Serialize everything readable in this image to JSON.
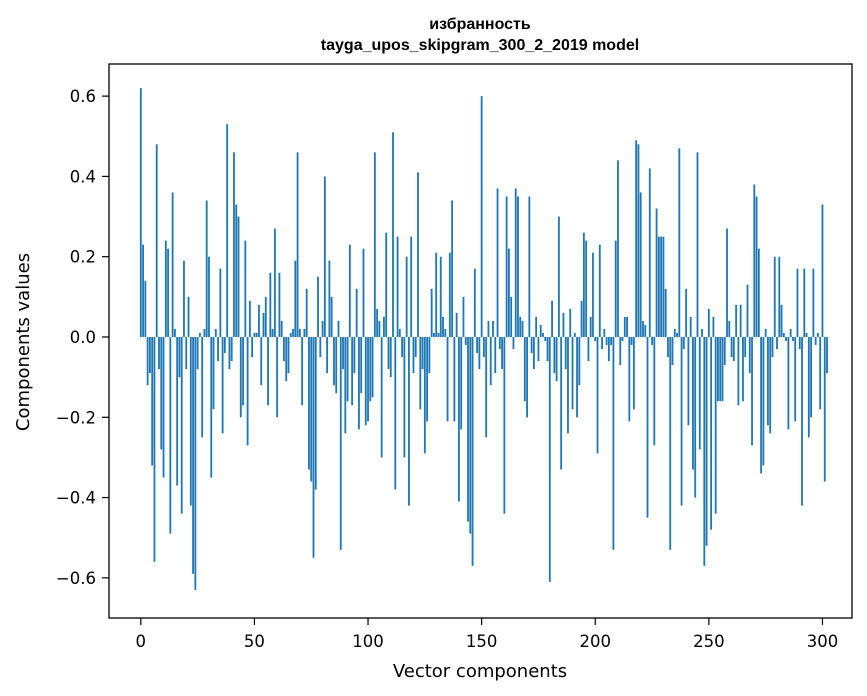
{
  "chart_data": {
    "type": "bar",
    "title_lines": [
      "избранность",
      "tayga_upos_skipgram_300_2_2019 model"
    ],
    "xlabel": "Vector components",
    "ylabel": "Components values",
    "xlim": [
      -14,
      313
    ],
    "ylim": [
      -0.7,
      0.68
    ],
    "xticks": [
      0,
      50,
      100,
      150,
      200,
      250,
      300
    ],
    "yticks": [
      0.6,
      0.4,
      0.2,
      0.0,
      -0.2,
      -0.4,
      -0.6
    ],
    "ytick_labels": [
      "0.6",
      "0.4",
      "0.2",
      "0.0",
      "−0.2",
      "−0.4",
      "−0.6"
    ],
    "grid": false,
    "bar_color": "#1f77b4",
    "values": [
      0.62,
      0.23,
      0.14,
      -0.12,
      -0.09,
      -0.32,
      -0.56,
      0.48,
      -0.08,
      -0.28,
      -0.35,
      0.24,
      0.22,
      -0.49,
      0.36,
      0.02,
      -0.37,
      -0.1,
      -0.44,
      0.19,
      -0.08,
      0.1,
      -0.42,
      -0.59,
      -0.63,
      -0.08,
      0.01,
      -0.25,
      0.02,
      0.34,
      0.2,
      -0.35,
      -0.18,
      0.02,
      -0.06,
      0.17,
      -0.24,
      -0.04,
      0.53,
      -0.08,
      -0.06,
      0.46,
      0.33,
      0.3,
      -0.2,
      -0.17,
      0.24,
      -0.27,
      0.09,
      -0.05,
      0.01,
      0.01,
      0.08,
      -0.12,
      0.06,
      0.1,
      -0.17,
      0.16,
      0.02,
      0.27,
      -0.2,
      0.16,
      0.04,
      -0.06,
      -0.11,
      -0.09,
      0.01,
      0.02,
      0.19,
      0.46,
      0.02,
      -0.17,
      0.02,
      0.12,
      -0.33,
      -0.36,
      -0.55,
      -0.38,
      0.15,
      -0.05,
      0.04,
      0.4,
      -0.09,
      0.19,
      0.1,
      -0.12,
      -0.14,
      0.04,
      -0.53,
      -0.08,
      -0.24,
      -0.16,
      0.23,
      -0.17,
      -0.09,
      0.12,
      -0.23,
      -0.14,
      0.22,
      -0.22,
      -0.21,
      -0.16,
      -0.15,
      0.46,
      0.07,
      0.04,
      -0.3,
      0.05,
      0.26,
      -0.08,
      -0.1,
      0.51,
      -0.38,
      0.25,
      0.02,
      -0.05,
      -0.3,
      0.2,
      -0.42,
      0.25,
      -0.09,
      -0.05,
      0.41,
      -0.18,
      -0.08,
      -0.29,
      -0.21,
      -0.09,
      0.12,
      0.01,
      0.21,
      0.01,
      0.2,
      0.05,
      0.02,
      -0.21,
      0.21,
      0.34,
      -0.21,
      0.06,
      -0.41,
      -0.23,
      0.1,
      -0.02,
      -0.46,
      -0.49,
      -0.57,
      0.17,
      -0.04,
      -0.08,
      0.6,
      -0.05,
      -0.25,
      0.04,
      -0.12,
      0.04,
      -0.09,
      0.37,
      -0.03,
      -0.08,
      -0.44,
      0.35,
      0.22,
      0.1,
      -0.03,
      0.37,
      0.35,
      0.05,
      0.04,
      -0.16,
      -0.2,
      0.35,
      -0.04,
      -0.08,
      0.05,
      -0.06,
      0.03,
      0.01,
      -0.01,
      -0.06,
      -0.61,
      0.09,
      -0.09,
      -0.11,
      0.3,
      -0.33,
      0.06,
      -0.08,
      -0.24,
      0.07,
      -0.18,
      0.01,
      -0.2,
      -0.12,
      0.09,
      0.26,
      0.24,
      -0.06,
      0.05,
      0.21,
      -0.01,
      -0.29,
      0.23,
      -0.03,
      0.02,
      -0.02,
      -0.06,
      -0.02,
      -0.53,
      0.24,
      0.44,
      -0.07,
      -0.01,
      0.05,
      0.05,
      -0.21,
      -0.02,
      -0.18,
      0.49,
      0.48,
      0.36,
      0.04,
      0.03,
      -0.45,
      0.42,
      -0.02,
      -0.27,
      0.32,
      0.25,
      0.25,
      0.25,
      0.12,
      -0.05,
      -0.53,
      -0.07,
      0.02,
      0.01,
      0.47,
      -0.42,
      -0.03,
      0.12,
      -0.22,
      0.05,
      -0.33,
      -0.4,
      0.46,
      -0.28,
      0.02,
      -0.57,
      -0.52,
      0.07,
      -0.48,
      0.05,
      -0.44,
      -0.16,
      -0.16,
      -0.16,
      -0.07,
      0.27,
      0.04,
      -0.05,
      -0.06,
      0.08,
      -0.17,
      0.08,
      -0.16,
      -0.05,
      0.13,
      -0.09,
      -0.27,
      0.38,
      0.35,
      0.22,
      -0.34,
      -0.32,
      0.02,
      -0.22,
      -0.24,
      -0.05,
      0.2,
      -0.03,
      0.2,
      0.08,
      0.01,
      -0.01,
      -0.23,
      0.02,
      -0.01,
      -0.21,
      0.17,
      -0.03,
      -0.42,
      0.17,
      0.01,
      -0.25,
      -0.2,
      0.17,
      -0.02,
      0.01,
      -0.18,
      0.33,
      -0.36,
      -0.09
    ]
  }
}
